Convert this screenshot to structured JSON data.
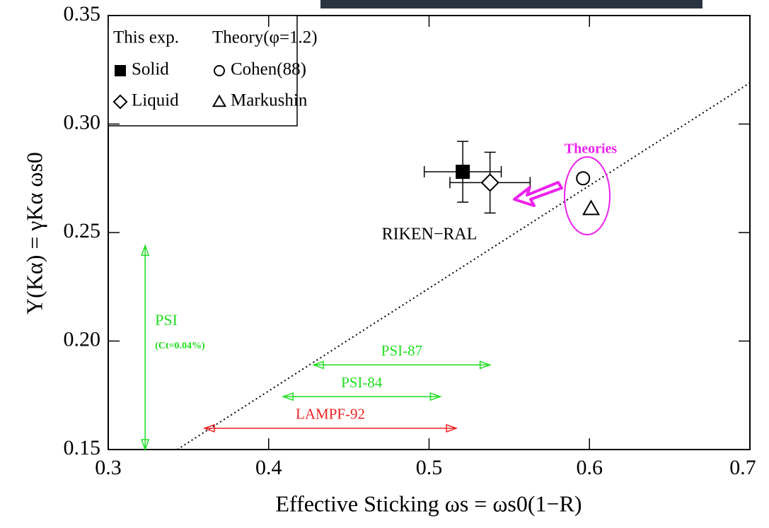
{
  "chart_data": {
    "type": "scatter",
    "x_label": "Effective Sticking ωs = ωs0(1−R)",
    "y_label": "Y(Kα) = γKα ωs0",
    "xlim": [
      0.3,
      0.7
    ],
    "ylim": [
      0.15,
      0.35
    ],
    "xticks": [
      0.3,
      0.4,
      0.5,
      0.6,
      0.7
    ],
    "yticks": [
      0.15,
      {
        "value": 0.2,
        "label": "0.20"
      },
      0.25,
      {
        "value": 0.3,
        "label": "0.30"
      },
      0.35
    ],
    "legend_position": "upper left",
    "legend_titles": [
      "This exp.",
      "Theory(φ=1.2)"
    ],
    "series": [
      {
        "name": "Solid",
        "color": "#000000",
        "marker": "filled-square",
        "x": [
          0.521
        ],
        "y": [
          0.278
        ],
        "xerr": [
          0.024
        ],
        "yerr": [
          0.014
        ]
      },
      {
        "name": "Liquid",
        "color": "#000000",
        "marker": "diamond",
        "x": [
          0.538
        ],
        "y": [
          0.273
        ],
        "xerr": [
          0.025
        ],
        "yerr": [
          0.014
        ]
      },
      {
        "name": "Cohen(88)",
        "color": "#000000",
        "marker": "circle",
        "x": [
          0.596
        ],
        "y": [
          0.275
        ]
      },
      {
        "name": "Markushin",
        "color": "#000000",
        "marker": "triangle",
        "x": [
          0.601
        ],
        "y": [
          0.261
        ]
      }
    ],
    "reference_line": {
      "x": [
        0.343,
        0.7
      ],
      "y": [
        0.15,
        0.319
      ]
    },
    "ranges": [
      {
        "label": "PSI-87",
        "color": "#22dd22",
        "x": [
          0.428,
          0.538
        ],
        "y": 0.189
      },
      {
        "label": "PSI-84",
        "color": "#22dd22",
        "x": [
          0.409,
          0.507
        ],
        "y": 0.1744
      },
      {
        "label": "LAMPF-92",
        "color": "#ee2222",
        "x": [
          0.36,
          0.517
        ],
        "y": 0.1598
      }
    ],
    "vertical_range": {
      "label": "PSI",
      "note": "(Ct=0.04%)",
      "color": "#22dd22",
      "x": 0.323,
      "y": [
        0.15,
        0.244
      ]
    },
    "annotations": {
      "group_label": "RIKEN−RAL",
      "theory_label": "Theories",
      "theory_color": "#ee22ee"
    }
  }
}
